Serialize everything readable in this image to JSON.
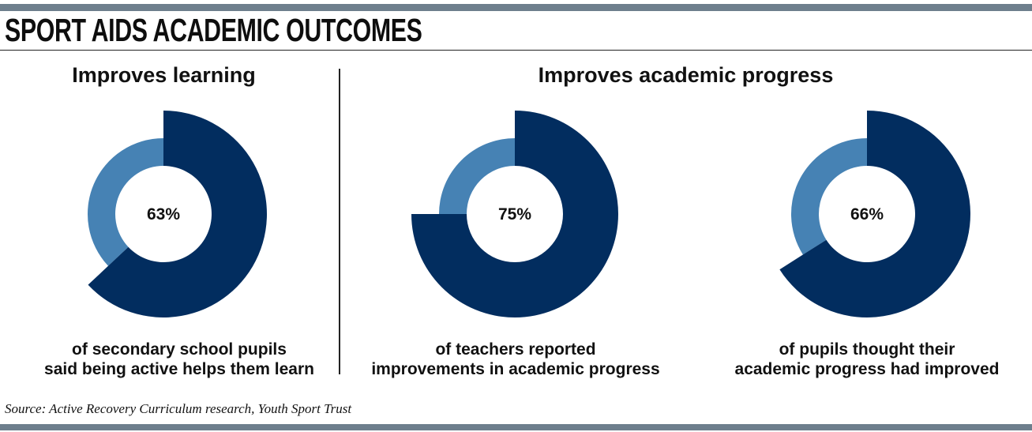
{
  "title": "SPORT AIDS ACADEMIC OUTCOMES",
  "sections": [
    {
      "heading": "Improves learning"
    },
    {
      "heading": "Improves academic progress"
    }
  ],
  "colors": {
    "primary": "#022d5f",
    "secondary": "#4682b4",
    "rule": "#6e7f8d"
  },
  "chart_data": [
    {
      "type": "pie",
      "section": "Improves learning",
      "value": 63,
      "label": "63%",
      "caption": [
        "of secondary school pupils",
        "said being active helps them learn"
      ]
    },
    {
      "type": "pie",
      "section": "Improves academic progress",
      "value": 75,
      "label": "75%",
      "caption": [
        "of teachers reported",
        "improvements in academic progress"
      ]
    },
    {
      "type": "pie",
      "section": "Improves academic progress",
      "value": 66,
      "label": "66%",
      "caption": [
        "of pupils thought their",
        "academic progress had improved"
      ]
    }
  ],
  "source": "Source: Active Recovery Curriculum research, Youth Sport Trust"
}
